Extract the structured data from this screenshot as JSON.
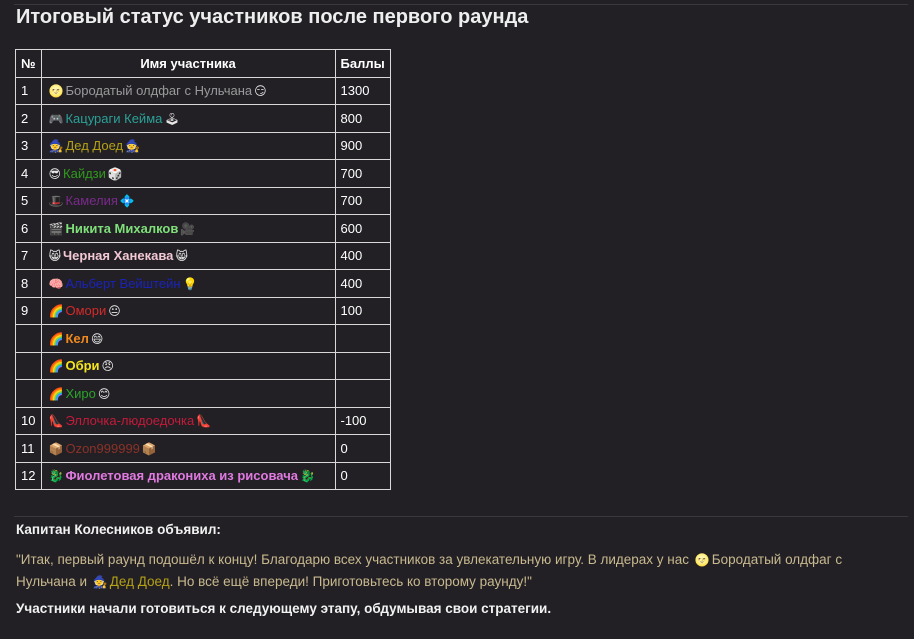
{
  "title": "Итоговый статус участников после первого раунда",
  "table": {
    "headers": [
      "№",
      "Имя участника",
      "Баллы"
    ],
    "rows": [
      {
        "num": "1",
        "pre": "🌝",
        "name": "Бородатый олдфаг с Нульчана",
        "post": "😏",
        "score": "1300",
        "color": "#9a9a9a",
        "bold": false
      },
      {
        "num": "2",
        "pre": "🎮",
        "name": "Кацураги Кейма",
        "post": "🕹",
        "score": "800",
        "color": "#2aa198",
        "bold": false
      },
      {
        "num": "3",
        "pre": "🧙",
        "name": "Дед Доед",
        "post": "🧙",
        "score": "900",
        "color": "#b5a016",
        "bold": false
      },
      {
        "num": "4",
        "pre": "😎",
        "name": "Кайдзи",
        "post": "🎲",
        "score": "700",
        "color": "#2f9a1e",
        "bold": false
      },
      {
        "num": "5",
        "pre": "🎩",
        "name": "Камелия",
        "post": "💠",
        "score": "700",
        "color": "#7a2a8a",
        "bold": false
      },
      {
        "num": "6",
        "pre": "🎬",
        "name": "Никита Михалков",
        "post": "🎥",
        "score": "600",
        "color": "#7fe07a",
        "bold": true
      },
      {
        "num": "7",
        "pre": "😸",
        "name": "Черная Ханекава",
        "post": "😸",
        "score": "400",
        "color": "#f2c8d4",
        "bold": true
      },
      {
        "num": "8",
        "pre": "🧠",
        "name": "Альберт Вейштейн",
        "post": "💡",
        "score": "400",
        "color": "#1a23b8",
        "bold": false
      },
      {
        "num": "9",
        "pre": "🌈",
        "name": "Омори",
        "post": "😐",
        "score": "100",
        "color": "#d42a2a",
        "bold": false
      },
      {
        "num": "",
        "pre": "🌈",
        "name": "Кел",
        "post": "😄",
        "score": "",
        "color": "#f08a1e",
        "bold": true
      },
      {
        "num": "",
        "pre": "🌈",
        "name": "Обри",
        "post": "😠",
        "score": "",
        "color": "#f5e51e",
        "bold": true
      },
      {
        "num": "",
        "pre": "🌈",
        "name": "Хиро",
        "post": "😊",
        "score": "",
        "color": "#2aa42a",
        "bold": false
      },
      {
        "num": "10",
        "pre": "👠",
        "name": "Эллочка-людоедочка",
        "post": "👠",
        "score": "-100",
        "color": "#c41a3a",
        "bold": false
      },
      {
        "num": "11",
        "pre": "📦",
        "name": "Ozon999999",
        "post": "📦",
        "score": "0",
        "color": "#8a3228",
        "bold": false
      },
      {
        "num": "12",
        "pre": "🐉",
        "name": "Фиолетовая дракониха из рисовача",
        "post": "🐉",
        "score": "0",
        "color": "#e07ae0",
        "bold": true
      }
    ]
  },
  "message": {
    "author": "Капитан Колесников объявил:",
    "quote_1": "\"Итак, первый раунд подошёл к концу! Благодарю всех участников за увлекательную игру. В лидерах у нас ",
    "leader1_emoji": "🌝",
    "leader1_name": "Бородатый олдфаг с Нульчана",
    "quote_2": " и ",
    "leader2_emoji": "🧙",
    "leader2_name": "Дед Доед",
    "quote_3": ". Но всё ещё впереди! Приготовьтесь ко второму раунду!\"",
    "footer": "Участники начали готовиться к следующему этапу, обдумывая свои стратегии."
  },
  "colors": {
    "background": "#222025",
    "quote_text": "#c9b98e",
    "leader2_name": "#b5a016"
  }
}
